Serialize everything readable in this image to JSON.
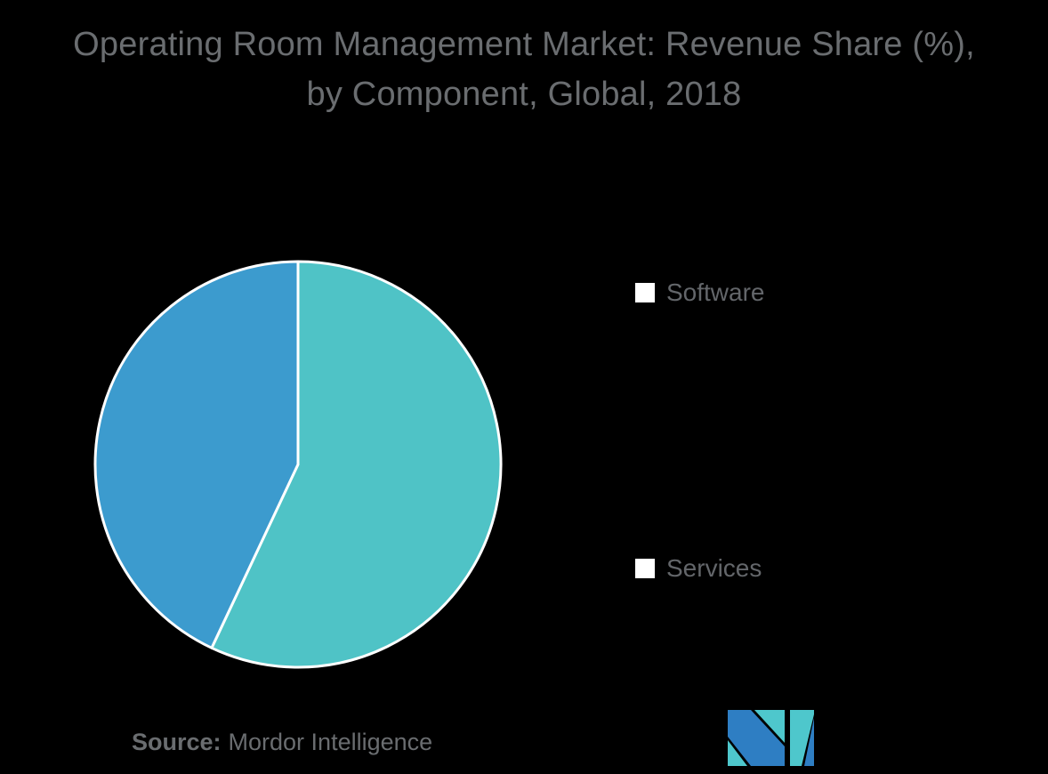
{
  "page": {
    "background": "#000000"
  },
  "header": {
    "title_line1": "Operating Room Management Market: Revenue Share (%),",
    "title_line2": "by Component, Global, 2018",
    "text_color": "#6A6D70"
  },
  "legend": {
    "position": "right",
    "text_color": "#63666A",
    "items": [
      {
        "label": "Software",
        "color": "#4FC3C6"
      },
      {
        "label": "Services",
        "color": "#3C9BCE"
      }
    ]
  },
  "source": {
    "label": "Source:",
    "value": "Mordor Intelligence",
    "text_color": "#6A6D70"
  },
  "logo": {
    "name": "mordor-intelligence-logo",
    "teal": "#4EC7CC",
    "blue": "#2E7EC3"
  },
  "chart_data": {
    "type": "pie",
    "title": "Operating Room Management Market: Revenue Share (%), by Component, Global, 2018",
    "categories": [
      "Software",
      "Services"
    ],
    "values": [
      57,
      43
    ],
    "unit": "%",
    "colors": [
      "#4FC3C6",
      "#3C9BCE"
    ],
    "slice_border_color": "#FFFFFF",
    "start_angle": "12 o'clock",
    "direction": "clockwise",
    "legend_position": "right",
    "data_labels_shown": false
  }
}
